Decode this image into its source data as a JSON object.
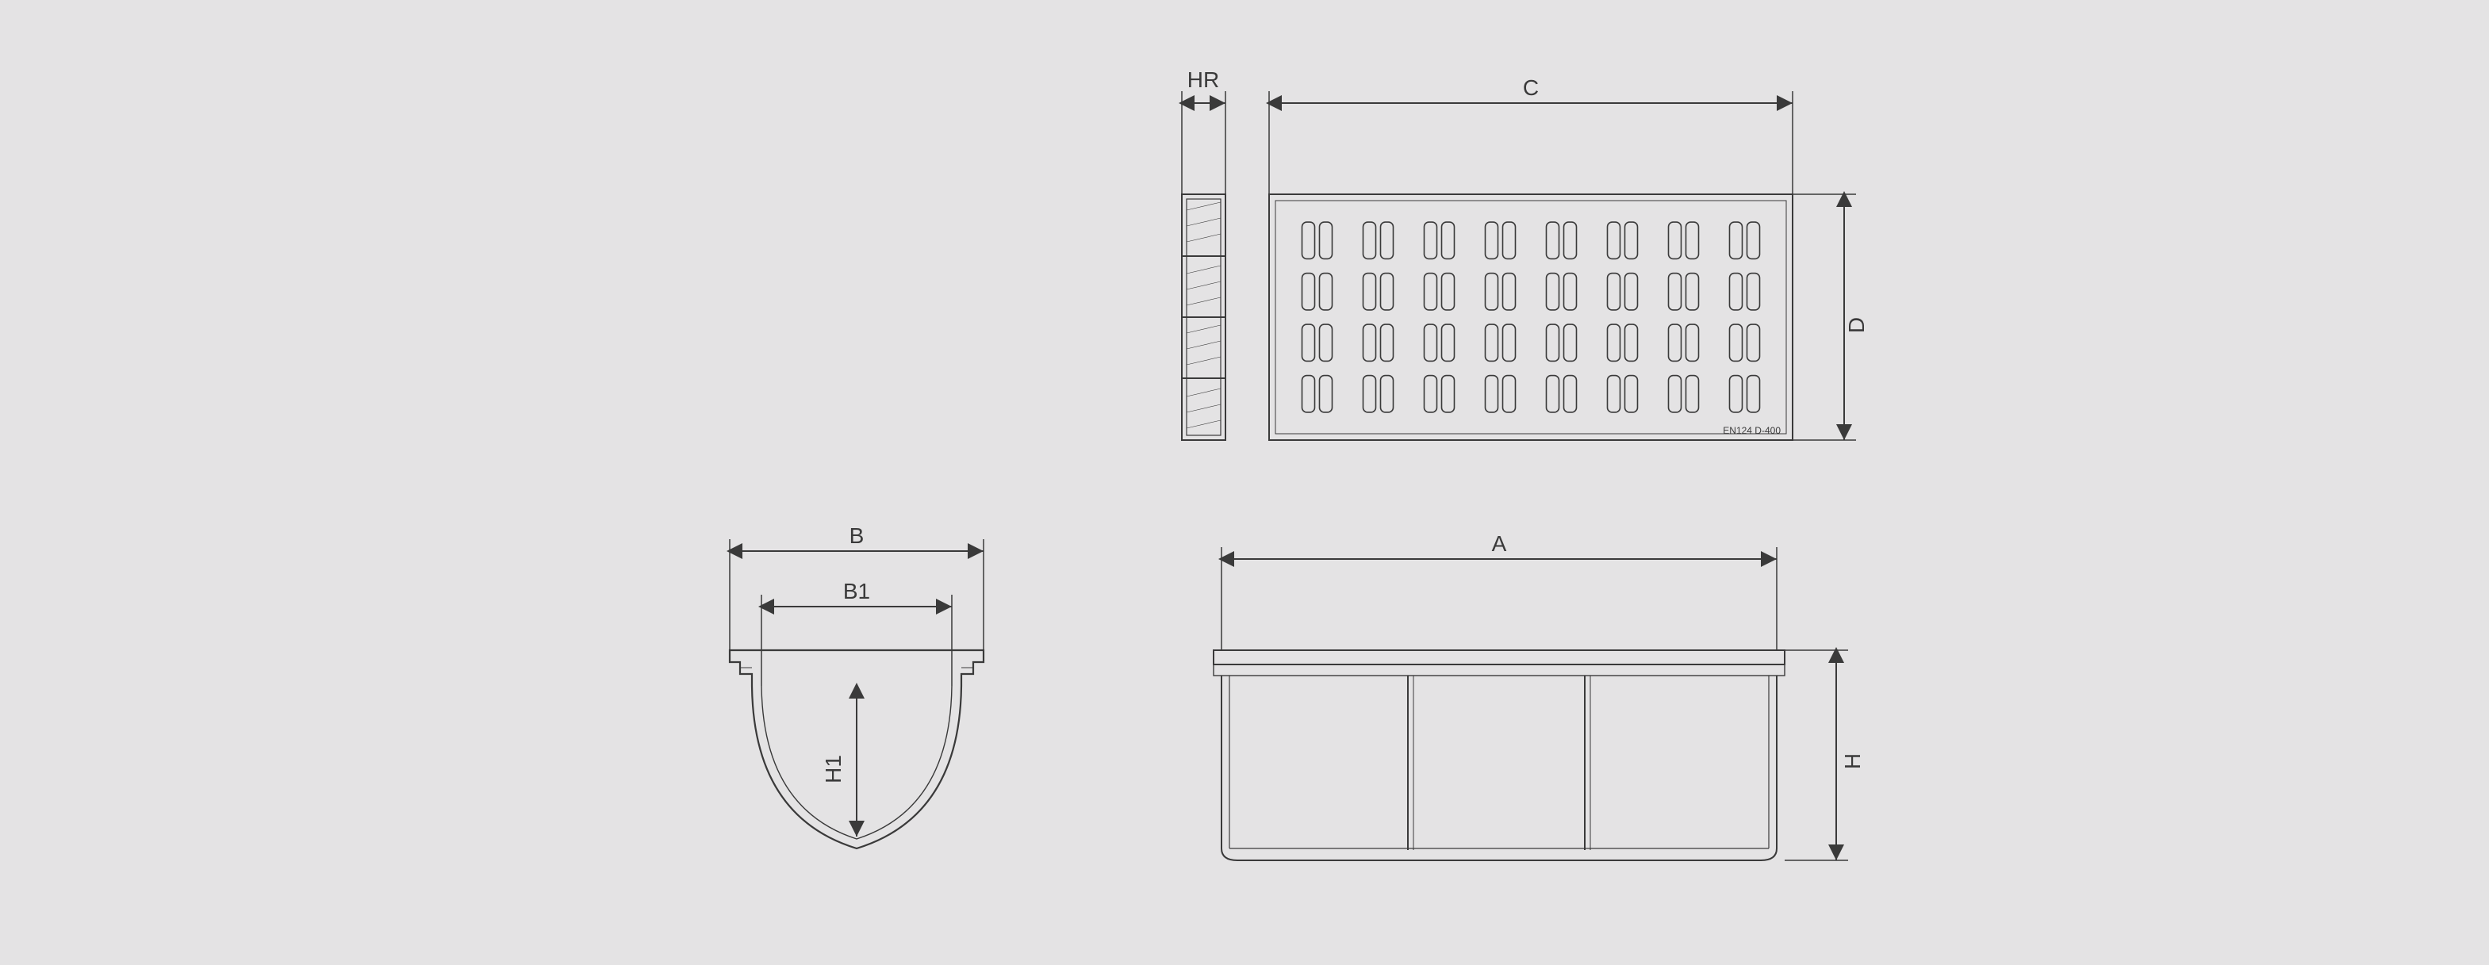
{
  "diagram": {
    "type": "engineering-drawing",
    "background_color": "#e4e3e4",
    "line_color": "#3a3a3a",
    "line_weight": 2,
    "label_font_size": 28,
    "label_color": "#3a3a3a",
    "dimensions": {
      "HR": "HR",
      "C": "C",
      "D": "D",
      "B": "B",
      "B1": "B1",
      "H1": "H1",
      "A": "A",
      "H": "H"
    },
    "grate": {
      "rows": 4,
      "cols": 8,
      "slot_pairs": true,
      "marking_left": "",
      "marking_right": "EN124   D-400"
    },
    "channel_side": {
      "ribs": 3
    }
  }
}
